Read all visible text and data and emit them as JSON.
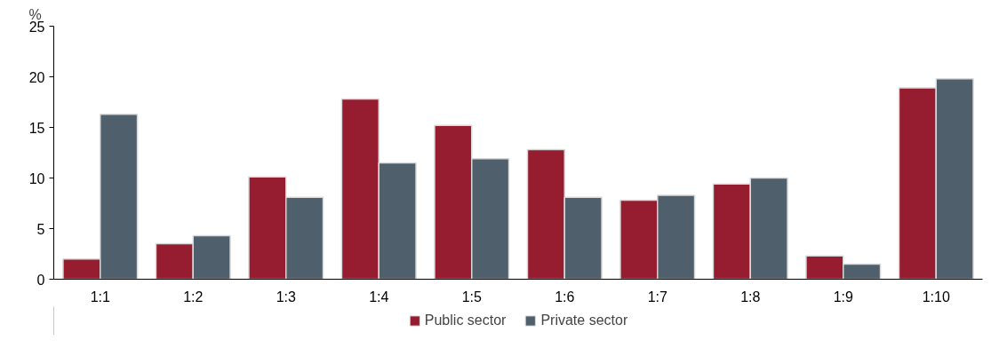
{
  "chart_data": {
    "type": "bar",
    "ylabel": "%",
    "categories": [
      "1:1",
      "1:2",
      "1:3",
      "1:4",
      "1:5",
      "1:6",
      "1:7",
      "1:8",
      "1:9",
      "1:10"
    ],
    "series": [
      {
        "name": "Public sector",
        "color": "#961c30",
        "values": [
          2.0,
          3.5,
          10.1,
          17.8,
          15.2,
          12.8,
          7.8,
          9.4,
          2.3,
          18.9
        ]
      },
      {
        "name": "Private sector",
        "color": "#4f5f6b",
        "values": [
          16.3,
          4.3,
          8.1,
          11.5,
          11.9,
          8.1,
          8.3,
          10.0,
          1.5,
          19.8
        ]
      }
    ],
    "ylim": [
      0,
      25
    ],
    "yticks": [
      0,
      5,
      10,
      15,
      20,
      25
    ],
    "grid": false,
    "legend": "bottom"
  }
}
